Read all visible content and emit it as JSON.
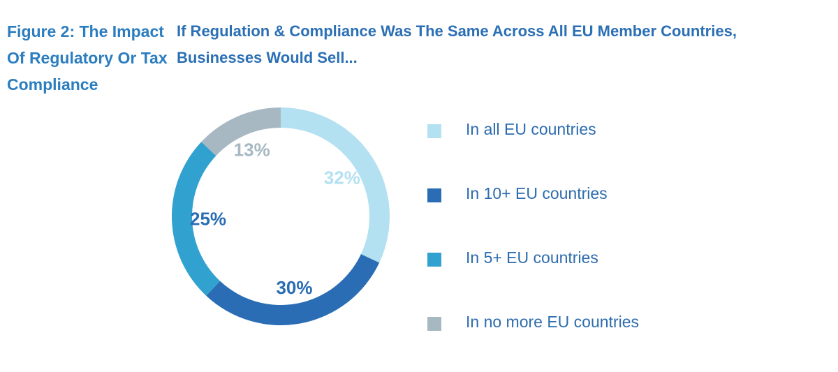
{
  "figure_label": "Figure 2: The Impact Of Regulatory Or Tax Compliance",
  "chart_data": {
    "type": "pie",
    "title": "If Regulation & Compliance Was The Same Across All EU Member Countries, Businesses Would Sell...",
    "legend_position": "right",
    "slices": [
      {
        "name": "In all EU countries",
        "value": 32,
        "label": "32%",
        "color": "#b3e1f1"
      },
      {
        "name": "In 10+ EU countries",
        "value": 30,
        "label": "30%",
        "color": "#2a6db4"
      },
      {
        "name": "In 5+ EU countries",
        "value": 25,
        "label": "25%",
        "color": "#31a1cf"
      },
      {
        "name": "In no more EU countries",
        "value": 13,
        "label": "13%",
        "color": "#a7b8c2"
      }
    ]
  }
}
